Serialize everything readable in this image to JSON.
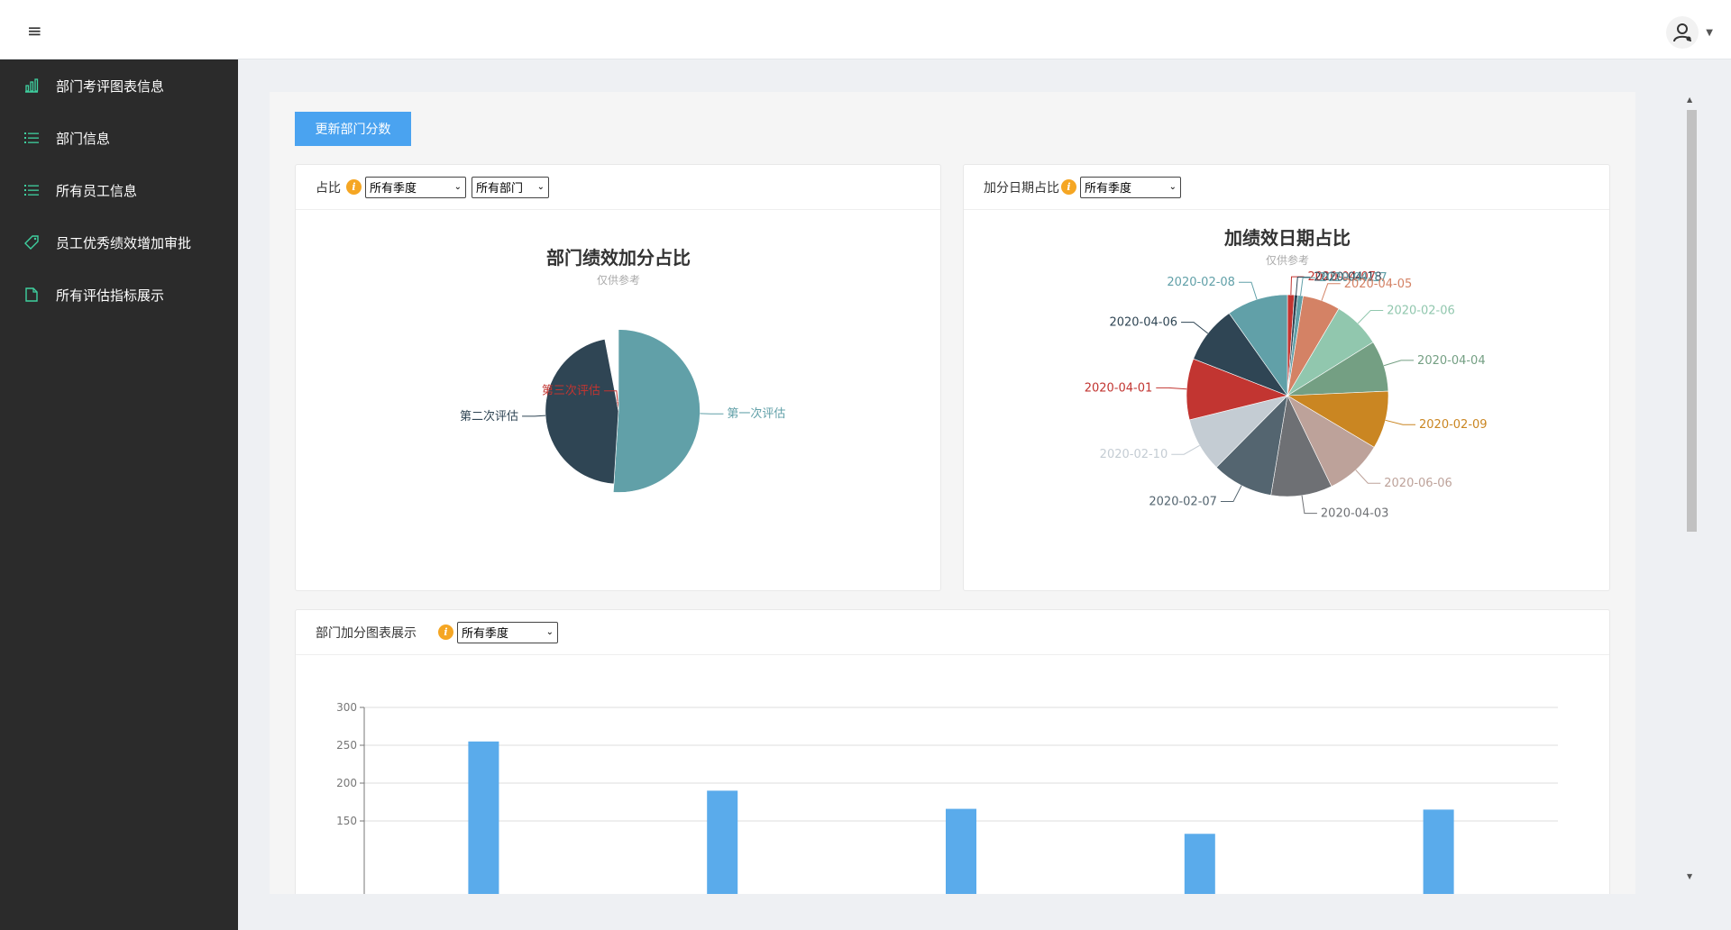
{
  "header": {
    "menu_icon": "hamburger-icon",
    "user_icon": "user-avatar-icon"
  },
  "sidebar": {
    "items": [
      {
        "label": "部门考评图表信息",
        "icon": "bar-chart-icon"
      },
      {
        "label": "部门信息",
        "icon": "list-icon"
      },
      {
        "label": "所有员工信息",
        "icon": "list-icon"
      },
      {
        "label": "员工优秀绩效增加审批",
        "icon": "tag-icon"
      },
      {
        "label": "所有评估指标展示",
        "icon": "document-icon"
      }
    ]
  },
  "main": {
    "update_button": "更新部门分数"
  },
  "cards": {
    "dept_ratio": {
      "title": "占比",
      "selects": [
        "所有季度",
        "所有部门"
      ],
      "chart_title": "部门绩效加分占比",
      "chart_subtitle": "仅供参考"
    },
    "date_ratio": {
      "title": "加分日期占比",
      "selects": [
        "所有季度"
      ],
      "chart_title": "加绩效日期占比",
      "chart_subtitle": "仅供参考"
    },
    "dept_bar": {
      "title": "部门加分图表展示",
      "selects": [
        "所有季度"
      ]
    }
  },
  "colors": {
    "accent": "#4aa3f0",
    "sidebar_bg": "#2b2b2b",
    "nav_icon": "#3fd1a0",
    "info_icon": "#f5a623",
    "bar": "#5aabeb"
  },
  "chart_data": [
    {
      "type": "pie",
      "title": "部门绩效加分占比",
      "subtitle": "仅供参考",
      "slices": [
        {
          "name": "第一次评估",
          "value": 51,
          "color": "#61a0a8",
          "radius": 0.87
        },
        {
          "name": "第二次评估",
          "value": 46,
          "color": "#2f4554",
          "radius": 0.78
        },
        {
          "name": "第三次评估",
          "value": 3,
          "color": "#c23531",
          "radius": 0.1
        }
      ]
    },
    {
      "type": "pie",
      "title": "加绩效日期占比",
      "subtitle": "仅供参考",
      "slices": [
        {
          "name": "2020-04-07",
          "value": 1,
          "color": "#c23531"
        },
        {
          "name": "2020-04-18",
          "value": 0.5,
          "color": "#2f4554"
        },
        {
          "name": "2020-04-17",
          "value": 0.8,
          "color": "#61a0a8"
        },
        {
          "name": "2020-04-05",
          "value": 5.5,
          "color": "#d48265"
        },
        {
          "name": "2020-02-06",
          "value": 7,
          "color": "#91c7ae"
        },
        {
          "name": "2020-04-04",
          "value": 7.5,
          "color": "#749f83"
        },
        {
          "name": "2020-02-09",
          "value": 8.5,
          "color": "#ca8622"
        },
        {
          "name": "2020-06-06",
          "value": 8.5,
          "color": "#bda29a"
        },
        {
          "name": "2020-04-03",
          "value": 9,
          "color": "#6e7074"
        },
        {
          "name": "2020-02-07",
          "value": 9,
          "color": "#546570"
        },
        {
          "name": "2020-02-10",
          "value": 8,
          "color": "#c4ccd3"
        },
        {
          "name": "2020-04-01",
          "value": 9,
          "color": "#c23531"
        },
        {
          "name": "2020-04-06",
          "value": 8.5,
          "color": "#2f4554"
        },
        {
          "name": "2020-02-08",
          "value": 9,
          "color": "#61a0a8"
        }
      ]
    },
    {
      "type": "bar",
      "categories": [
        "",
        "",
        "",
        "",
        ""
      ],
      "values": [
        255,
        190,
        166,
        133,
        165
      ],
      "ylim": [
        0,
        300
      ],
      "yticks": [
        "300",
        "250",
        "200",
        "150"
      ],
      "grid": true
    }
  ]
}
